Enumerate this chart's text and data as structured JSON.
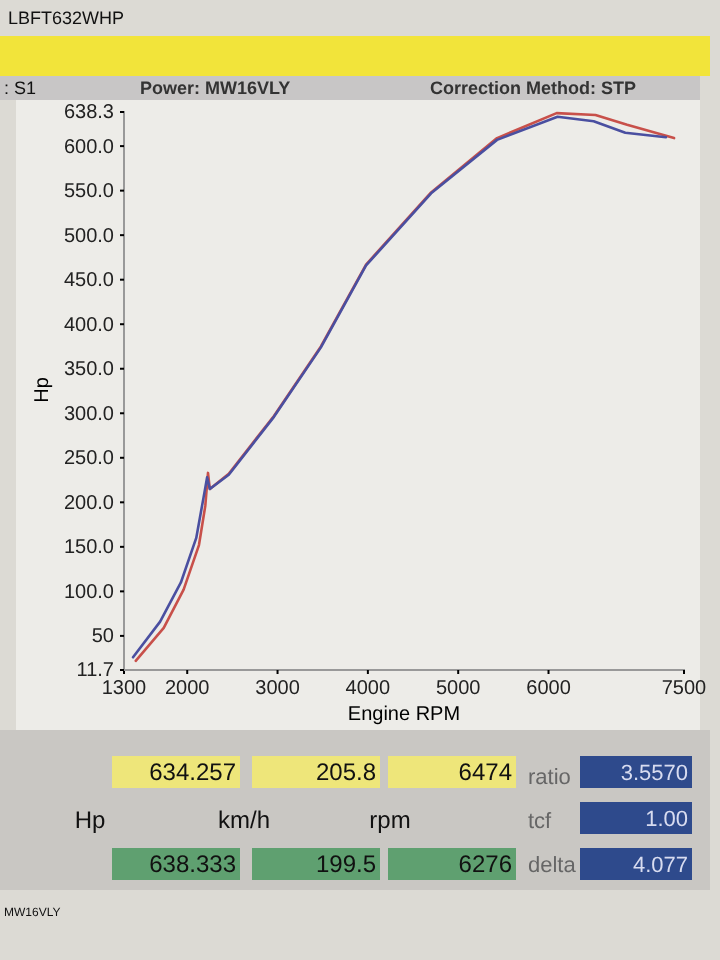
{
  "chart_data": {
    "type": "line",
    "title": "Power: MW16VLY",
    "subtitle": "Correction Method: STP",
    "xlabel": "Engine RPM",
    "ylabel": "Hp",
    "xlim": [
      1300,
      7500
    ],
    "xticks": [
      1300,
      2000,
      3000,
      4000,
      5000,
      6000,
      7500
    ],
    "ylim": [
      11.7,
      638.3
    ],
    "yticks": [
      11.7,
      50.0,
      {
        "value": 100,
        "label": "100.0"
      },
      {
        "value": 150,
        "label": "150.0"
      },
      {
        "value": 200,
        "label": "200.0"
      },
      {
        "value": 250,
        "label": "250.0"
      },
      {
        "value": 300,
        "label": "300.0"
      },
      {
        "value": 350,
        "label": "350.0"
      },
      {
        "value": 400,
        "label": "400.0"
      },
      {
        "value": 450,
        "label": "450.0"
      },
      {
        "value": 500,
        "label": "500.0"
      },
      {
        "value": 550,
        "label": "550.0"
      },
      {
        "value": 600,
        "label": "600.0"
      },
      638.3
    ],
    "grid": false,
    "line_style": "solid",
    "marker": "none",
    "series": [
      {
        "color": "#c8504a",
        "x": [
          1430,
          1740,
          1960,
          2130,
          2200,
          2230,
          2250,
          2460,
          2960,
          3480,
          3980,
          4700,
          5430,
          6090,
          6520,
          6870,
          7390
        ],
        "values": [
          22,
          59,
          102,
          152,
          196,
          233,
          215,
          232,
          297,
          375,
          467,
          548,
          609,
          637,
          635,
          624,
          609
        ]
      },
      {
        "color": "#4a4fa0",
        "x": [
          1400,
          1700,
          1930,
          2100,
          2180,
          2220,
          2250,
          2460,
          2960,
          3480,
          3980,
          4700,
          5430,
          6100,
          6500,
          6850,
          7300
        ],
        "values": [
          26,
          66,
          110,
          160,
          205,
          228,
          215,
          231,
          296,
          374,
          466,
          547,
          607,
          633,
          628,
          615,
          610
        ]
      }
    ],
    "annotations": [
      "LBFT632WHP",
      ": S1",
      "634.257",
      "205.8",
      "6474",
      "Hp",
      "km/h",
      "rpm",
      "638.333",
      "199.5",
      "6276",
      "ratio",
      "tcf",
      "delta",
      "3.5570",
      "1.00",
      "4.077",
      "MW16VLY"
    ]
  }
}
